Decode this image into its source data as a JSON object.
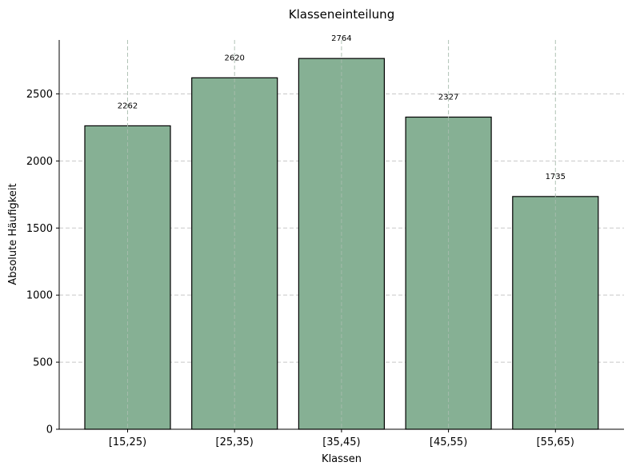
{
  "chart_data": {
    "type": "bar",
    "title": "Klasseneinteilung",
    "xlabel": "Klassen",
    "ylabel": "Absolute Häufigkeit",
    "categories": [
      "[15,25)",
      "[25,35)",
      "[35,45)",
      "[45,55)",
      "[55,65)"
    ],
    "values": [
      2262,
      2620,
      2764,
      2327,
      1735
    ],
    "data_labels": [
      "2262",
      "2620",
      "2764",
      "2327",
      "1735"
    ],
    "ylim": [
      0,
      2902
    ],
    "yticks": [
      0,
      500,
      1000,
      1500,
      2000,
      2500
    ],
    "ytick_labels": [
      "0",
      "500",
      "1000",
      "1500",
      "2000",
      "2500"
    ],
    "grid": "dashed, both axes",
    "bar_color": "#86B094",
    "bar_edge_color": "#000000",
    "grid_color": "#C8C8C8"
  }
}
